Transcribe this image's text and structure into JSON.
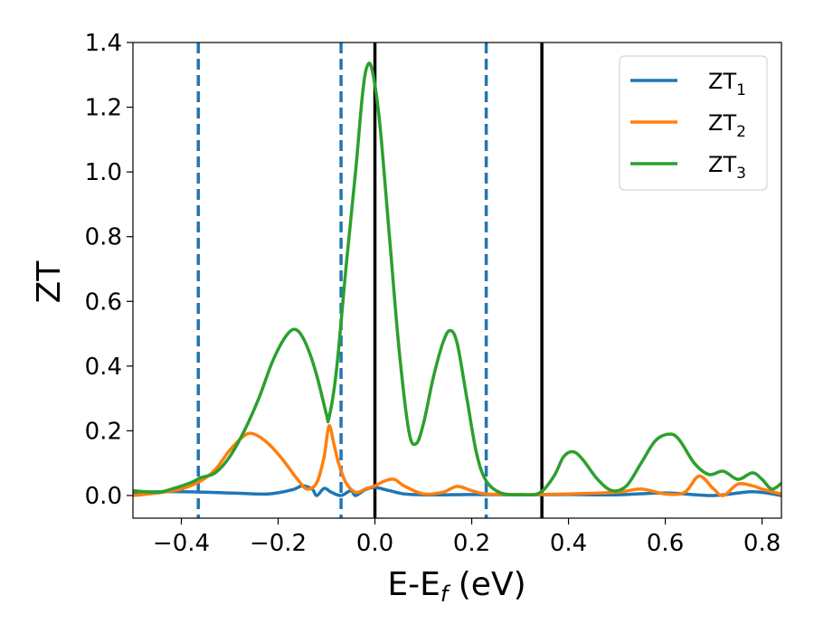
{
  "chart_data": {
    "type": "line",
    "xlabel_main": "E-E",
    "xlabel_sub": "f",
    "xlabel_unit": " (eV)",
    "ylabel": "ZT",
    "xlim": [
      -0.5,
      0.84
    ],
    "ylim": [
      -0.07,
      1.4
    ],
    "xticks": [
      -0.4,
      -0.2,
      0.0,
      0.2,
      0.4,
      0.6,
      0.8
    ],
    "xtick_labels": [
      "−0.4",
      "−0.2",
      "0.0",
      "0.2",
      "0.4",
      "0.6",
      "0.8"
    ],
    "yticks": [
      0.0,
      0.2,
      0.4,
      0.6,
      0.8,
      1.0,
      1.2,
      1.4
    ],
    "ytick_labels": [
      "0.0",
      "0.2",
      "0.4",
      "0.6",
      "0.8",
      "1.0",
      "1.2",
      "1.4"
    ],
    "grid": false,
    "legend_position": "top-right",
    "vertical_lines": [
      {
        "x": -0.365,
        "style": "dashed",
        "color": "#1f77b4"
      },
      {
        "x": -0.07,
        "style": "dashed",
        "color": "#1f77b4"
      },
      {
        "x": 0.23,
        "style": "dashed",
        "color": "#1f77b4"
      },
      {
        "x": 0.0,
        "style": "solid",
        "color": "#000000"
      },
      {
        "x": 0.345,
        "style": "solid",
        "color": "#000000"
      }
    ],
    "series": [
      {
        "name": "ZT",
        "sub": "1",
        "color": "#1f77b4",
        "points": [
          [
            -0.5,
            0.01
          ],
          [
            -0.4,
            0.012
          ],
          [
            -0.3,
            0.008
          ],
          [
            -0.22,
            0.005
          ],
          [
            -0.17,
            0.018
          ],
          [
            -0.15,
            0.03
          ],
          [
            -0.13,
            0.02
          ],
          [
            -0.12,
            0.0
          ],
          [
            -0.105,
            0.022
          ],
          [
            -0.09,
            0.01
          ],
          [
            -0.07,
            0.0
          ],
          [
            -0.05,
            0.015
          ],
          [
            -0.04,
            0.0
          ],
          [
            -0.02,
            0.018
          ],
          [
            0.0,
            0.025
          ],
          [
            0.03,
            0.015
          ],
          [
            0.06,
            0.005
          ],
          [
            0.1,
            0.002
          ],
          [
            0.2,
            0.003
          ],
          [
            0.3,
            0.002
          ],
          [
            0.4,
            0.003
          ],
          [
            0.5,
            0.002
          ],
          [
            0.6,
            0.008
          ],
          [
            0.7,
            0.0
          ],
          [
            0.78,
            0.012
          ],
          [
            0.84,
            0.0
          ]
        ]
      },
      {
        "name": "ZT",
        "sub": "2",
        "color": "#ff7f0e",
        "points": [
          [
            -0.5,
            0.0
          ],
          [
            -0.45,
            0.008
          ],
          [
            -0.4,
            0.02
          ],
          [
            -0.36,
            0.045
          ],
          [
            -0.33,
            0.08
          ],
          [
            -0.3,
            0.14
          ],
          [
            -0.27,
            0.185
          ],
          [
            -0.25,
            0.19
          ],
          [
            -0.22,
            0.16
          ],
          [
            -0.19,
            0.11
          ],
          [
            -0.16,
            0.05
          ],
          [
            -0.14,
            0.02
          ],
          [
            -0.12,
            0.04
          ],
          [
            -0.105,
            0.12
          ],
          [
            -0.095,
            0.215
          ],
          [
            -0.085,
            0.16
          ],
          [
            -0.075,
            0.1
          ],
          [
            -0.06,
            0.04
          ],
          [
            -0.04,
            0.01
          ],
          [
            -0.02,
            0.02
          ],
          [
            0.0,
            0.03
          ],
          [
            0.02,
            0.045
          ],
          [
            0.04,
            0.05
          ],
          [
            0.06,
            0.03
          ],
          [
            0.1,
            0.005
          ],
          [
            0.14,
            0.01
          ],
          [
            0.17,
            0.028
          ],
          [
            0.2,
            0.015
          ],
          [
            0.23,
            0.005
          ],
          [
            0.3,
            0.003
          ],
          [
            0.4,
            0.005
          ],
          [
            0.5,
            0.01
          ],
          [
            0.55,
            0.02
          ],
          [
            0.6,
            0.005
          ],
          [
            0.64,
            0.01
          ],
          [
            0.67,
            0.06
          ],
          [
            0.7,
            0.02
          ],
          [
            0.72,
            0.0
          ],
          [
            0.75,
            0.035
          ],
          [
            0.78,
            0.03
          ],
          [
            0.8,
            0.02
          ],
          [
            0.84,
            0.005
          ]
        ]
      },
      {
        "name": "ZT",
        "sub": "3",
        "color": "#2ca02c",
        "points": [
          [
            -0.5,
            0.015
          ],
          [
            -0.45,
            0.01
          ],
          [
            -0.42,
            0.02
          ],
          [
            -0.38,
            0.04
          ],
          [
            -0.36,
            0.055
          ],
          [
            -0.33,
            0.07
          ],
          [
            -0.3,
            0.12
          ],
          [
            -0.27,
            0.2
          ],
          [
            -0.24,
            0.3
          ],
          [
            -0.21,
            0.42
          ],
          [
            -0.18,
            0.5
          ],
          [
            -0.16,
            0.51
          ],
          [
            -0.14,
            0.46
          ],
          [
            -0.12,
            0.37
          ],
          [
            -0.1,
            0.25
          ],
          [
            -0.095,
            0.24
          ],
          [
            -0.08,
            0.38
          ],
          [
            -0.06,
            0.7
          ],
          [
            -0.04,
            1.0
          ],
          [
            -0.025,
            1.25
          ],
          [
            -0.015,
            1.33
          ],
          [
            -0.005,
            1.31
          ],
          [
            0.01,
            1.15
          ],
          [
            0.03,
            0.8
          ],
          [
            0.05,
            0.45
          ],
          [
            0.07,
            0.2
          ],
          [
            0.085,
            0.16
          ],
          [
            0.1,
            0.22
          ],
          [
            0.12,
            0.36
          ],
          [
            0.14,
            0.47
          ],
          [
            0.155,
            0.51
          ],
          [
            0.17,
            0.47
          ],
          [
            0.19,
            0.3
          ],
          [
            0.21,
            0.13
          ],
          [
            0.23,
            0.045
          ],
          [
            0.26,
            0.008
          ],
          [
            0.3,
            0.003
          ],
          [
            0.34,
            0.008
          ],
          [
            0.37,
            0.06
          ],
          [
            0.39,
            0.12
          ],
          [
            0.41,
            0.135
          ],
          [
            0.43,
            0.11
          ],
          [
            0.46,
            0.05
          ],
          [
            0.49,
            0.015
          ],
          [
            0.52,
            0.03
          ],
          [
            0.55,
            0.1
          ],
          [
            0.58,
            0.17
          ],
          [
            0.61,
            0.19
          ],
          [
            0.63,
            0.17
          ],
          [
            0.66,
            0.1
          ],
          [
            0.69,
            0.065
          ],
          [
            0.72,
            0.075
          ],
          [
            0.75,
            0.05
          ],
          [
            0.78,
            0.07
          ],
          [
            0.8,
            0.05
          ],
          [
            0.82,
            0.02
          ],
          [
            0.84,
            0.038
          ]
        ]
      }
    ]
  }
}
